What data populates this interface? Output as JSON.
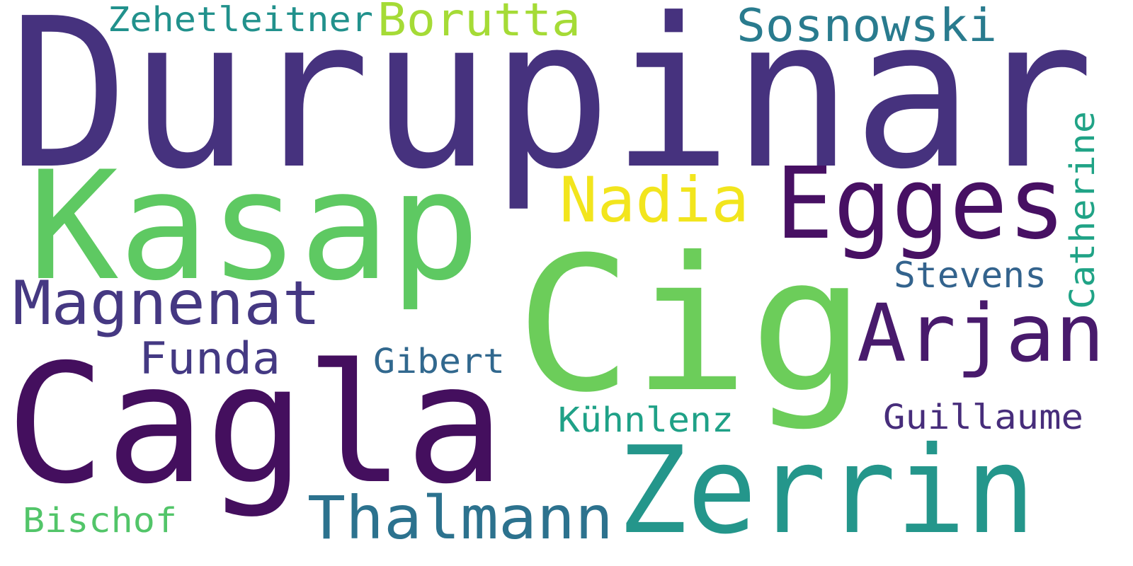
{
  "word_cloud": {
    "words": [
      {
        "text": "Durupinar",
        "color": "#46327e"
      },
      {
        "text": "Cig",
        "color": "#6ccd5a"
      },
      {
        "text": "Cagla",
        "color": "#440f5e"
      },
      {
        "text": "Kasap",
        "color": "#5ec962"
      },
      {
        "text": "Zerrin",
        "color": "#24968b"
      },
      {
        "text": "Egges",
        "color": "#471063"
      },
      {
        "text": "Arjan",
        "color": "#481a6c"
      },
      {
        "text": "Magnenat",
        "color": "#453882"
      },
      {
        "text": "Nadia",
        "color": "#f2e51d"
      },
      {
        "text": "Thalmann",
        "color": "#2c728e"
      },
      {
        "text": "Borutta",
        "color": "#a5db36"
      },
      {
        "text": "Sosnowski",
        "color": "#297b8e"
      },
      {
        "text": "Funda",
        "color": "#443983"
      },
      {
        "text": "Catherine",
        "color": "#20a386"
      },
      {
        "text": "Stevens",
        "color": "#33638d"
      },
      {
        "text": "Zehetleitner",
        "color": "#21918c"
      },
      {
        "text": "Gibert",
        "color": "#31688e"
      },
      {
        "text": "Kühnlenz",
        "color": "#1fa187"
      },
      {
        "text": "Guillaume",
        "color": "#472d7b"
      },
      {
        "text": "Bischof",
        "color": "#52c569"
      }
    ]
  }
}
